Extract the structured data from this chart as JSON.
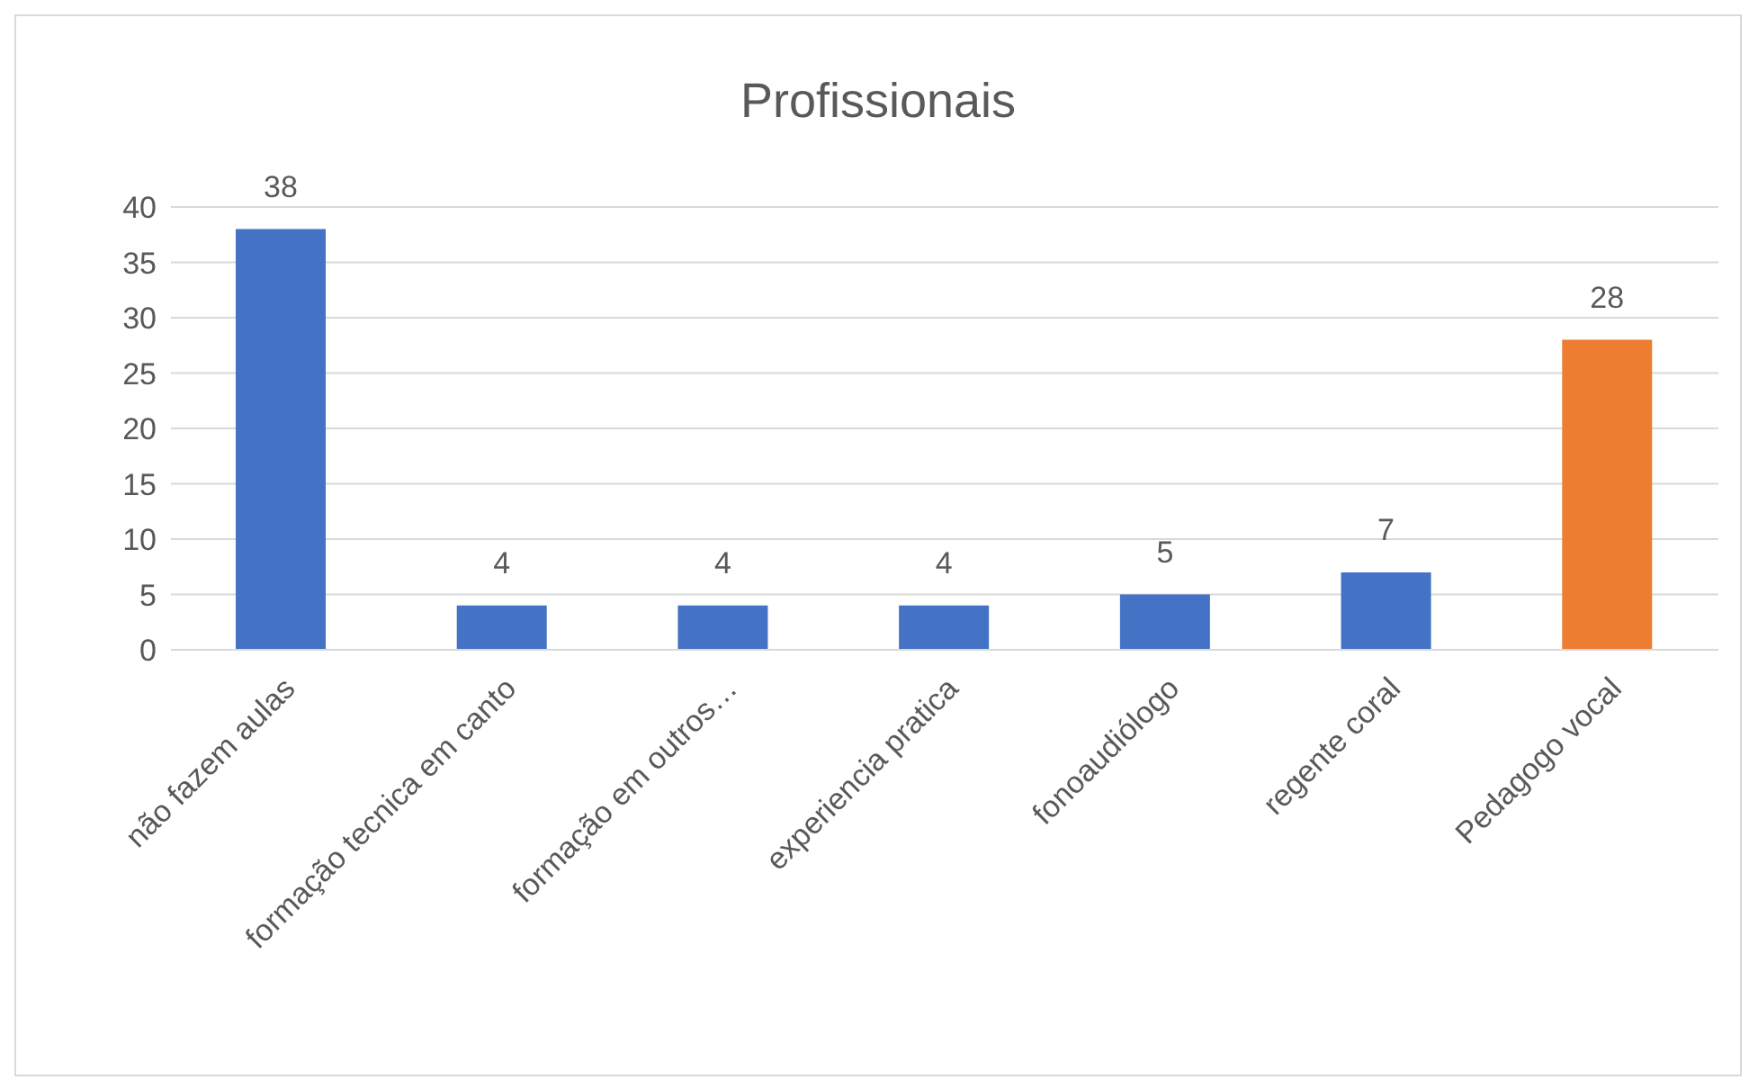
{
  "chart_data": {
    "type": "bar",
    "title": "Profissionais",
    "categories": [
      "não fazem aulas",
      "formação tecnica em canto",
      "formação em outros…",
      "experiencia pratica",
      "fonoaudiólogo",
      "regente coral",
      "Pedagogo vocal"
    ],
    "values": [
      38,
      4,
      4,
      4,
      5,
      7,
      28
    ],
    "colors": [
      "#4472c4",
      "#4472c4",
      "#4472c4",
      "#4472c4",
      "#4472c4",
      "#4472c4",
      "#ed7d31"
    ],
    "ylim": [
      0,
      40
    ],
    "yticks": [
      0,
      5,
      10,
      15,
      20,
      25,
      30,
      35,
      40
    ],
    "grid": "y",
    "data_labels": true
  }
}
